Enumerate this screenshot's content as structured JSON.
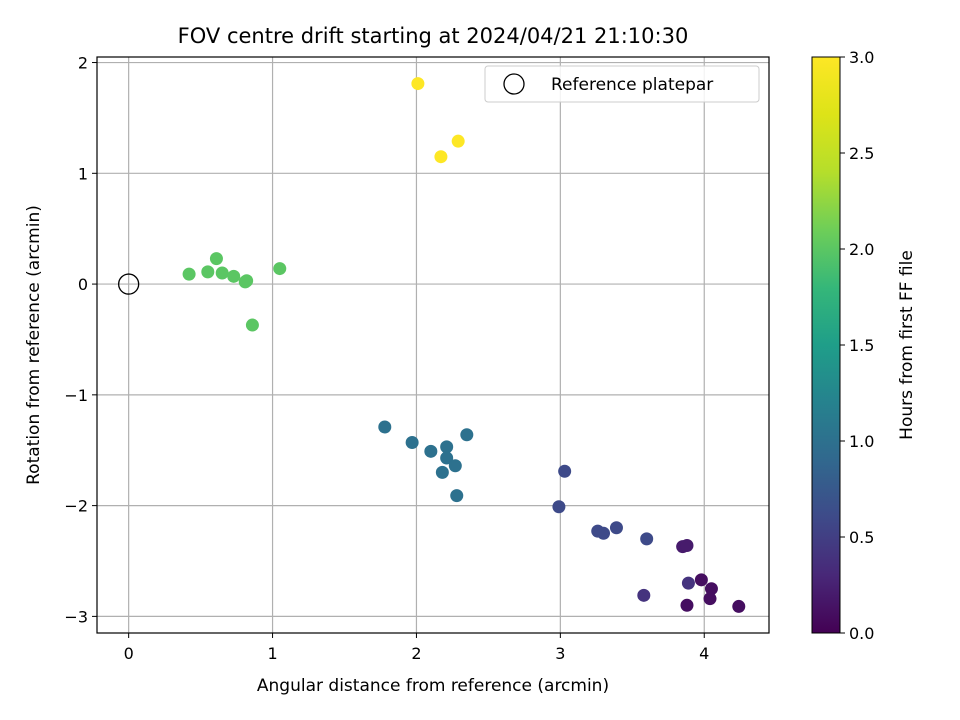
{
  "chart_data": {
    "type": "scatter",
    "title": "FOV centre drift starting at 2024/04/21 21:10:30",
    "xlabel": "Angular distance from reference (arcmin)",
    "ylabel": "Rotation from reference (arcmin)",
    "xlim": [
      -0.22,
      4.45
    ],
    "ylim": [
      -3.15,
      2.05
    ],
    "xticks": [
      0,
      1,
      2,
      3,
      4
    ],
    "yticks": [
      -3,
      -2,
      -1,
      0,
      1,
      2
    ],
    "xtick_labels": [
      "0",
      "1",
      "2",
      "3",
      "4"
    ],
    "ytick_labels": [
      "−3",
      "−2",
      "−1",
      "0",
      "1",
      "2"
    ],
    "grid": true,
    "legend_position": "top-right",
    "legend_label": "Reference platepar",
    "reference_point": {
      "x": 0,
      "y": 0
    },
    "colorbar": {
      "label": "Hours from first FF file",
      "range": [
        0.0,
        3.0
      ],
      "ticks": [
        0.0,
        0.5,
        1.0,
        1.5,
        2.0,
        2.5,
        3.0
      ],
      "tick_labels": [
        "0.0",
        "0.5",
        "1.0",
        "1.5",
        "2.0",
        "2.5",
        "3.0"
      ],
      "colormap": "viridis"
    },
    "points": [
      {
        "x": 2.01,
        "y": 1.81,
        "c": 3.0
      },
      {
        "x": 2.29,
        "y": 1.29,
        "c": 3.0
      },
      {
        "x": 2.17,
        "y": 1.15,
        "c": 3.0
      },
      {
        "x": 0.42,
        "y": 0.09,
        "c": 2.0
      },
      {
        "x": 0.55,
        "y": 0.11,
        "c": 2.0
      },
      {
        "x": 0.61,
        "y": 0.23,
        "c": 2.0
      },
      {
        "x": 0.65,
        "y": 0.1,
        "c": 2.0
      },
      {
        "x": 0.73,
        "y": 0.07,
        "c": 2.0
      },
      {
        "x": 0.82,
        "y": 0.03,
        "c": 2.0
      },
      {
        "x": 0.81,
        "y": 0.02,
        "c": 2.0
      },
      {
        "x": 1.05,
        "y": 0.14,
        "c": 2.0
      },
      {
        "x": 0.86,
        "y": -0.37,
        "c": 2.0
      },
      {
        "x": 1.78,
        "y": -1.29,
        "c": 1.0
      },
      {
        "x": 1.97,
        "y": -1.43,
        "c": 1.0
      },
      {
        "x": 2.35,
        "y": -1.36,
        "c": 1.0
      },
      {
        "x": 2.1,
        "y": -1.51,
        "c": 1.0
      },
      {
        "x": 2.21,
        "y": -1.47,
        "c": 1.0
      },
      {
        "x": 2.21,
        "y": -1.57,
        "c": 1.0
      },
      {
        "x": 2.27,
        "y": -1.64,
        "c": 1.0
      },
      {
        "x": 2.18,
        "y": -1.7,
        "c": 1.0
      },
      {
        "x": 2.28,
        "y": -1.91,
        "c": 1.0
      },
      {
        "x": 3.03,
        "y": -1.69,
        "c": 0.6
      },
      {
        "x": 2.99,
        "y": -2.01,
        "c": 0.6
      },
      {
        "x": 3.26,
        "y": -2.23,
        "c": 0.6
      },
      {
        "x": 3.3,
        "y": -2.25,
        "c": 0.6
      },
      {
        "x": 3.39,
        "y": -2.2,
        "c": 0.6
      },
      {
        "x": 3.6,
        "y": -2.3,
        "c": 0.6
      },
      {
        "x": 3.85,
        "y": -2.37,
        "c": 0.2
      },
      {
        "x": 3.88,
        "y": -2.36,
        "c": 0.2
      },
      {
        "x": 3.58,
        "y": -2.81,
        "c": 0.4
      },
      {
        "x": 3.89,
        "y": -2.7,
        "c": 0.4
      },
      {
        "x": 3.98,
        "y": -2.67,
        "c": 0.1
      },
      {
        "x": 4.05,
        "y": -2.75,
        "c": 0.1
      },
      {
        "x": 4.04,
        "y": -2.84,
        "c": 0.1
      },
      {
        "x": 3.88,
        "y": -2.9,
        "c": 0.1
      },
      {
        "x": 4.24,
        "y": -2.91,
        "c": 0.1
      }
    ]
  }
}
